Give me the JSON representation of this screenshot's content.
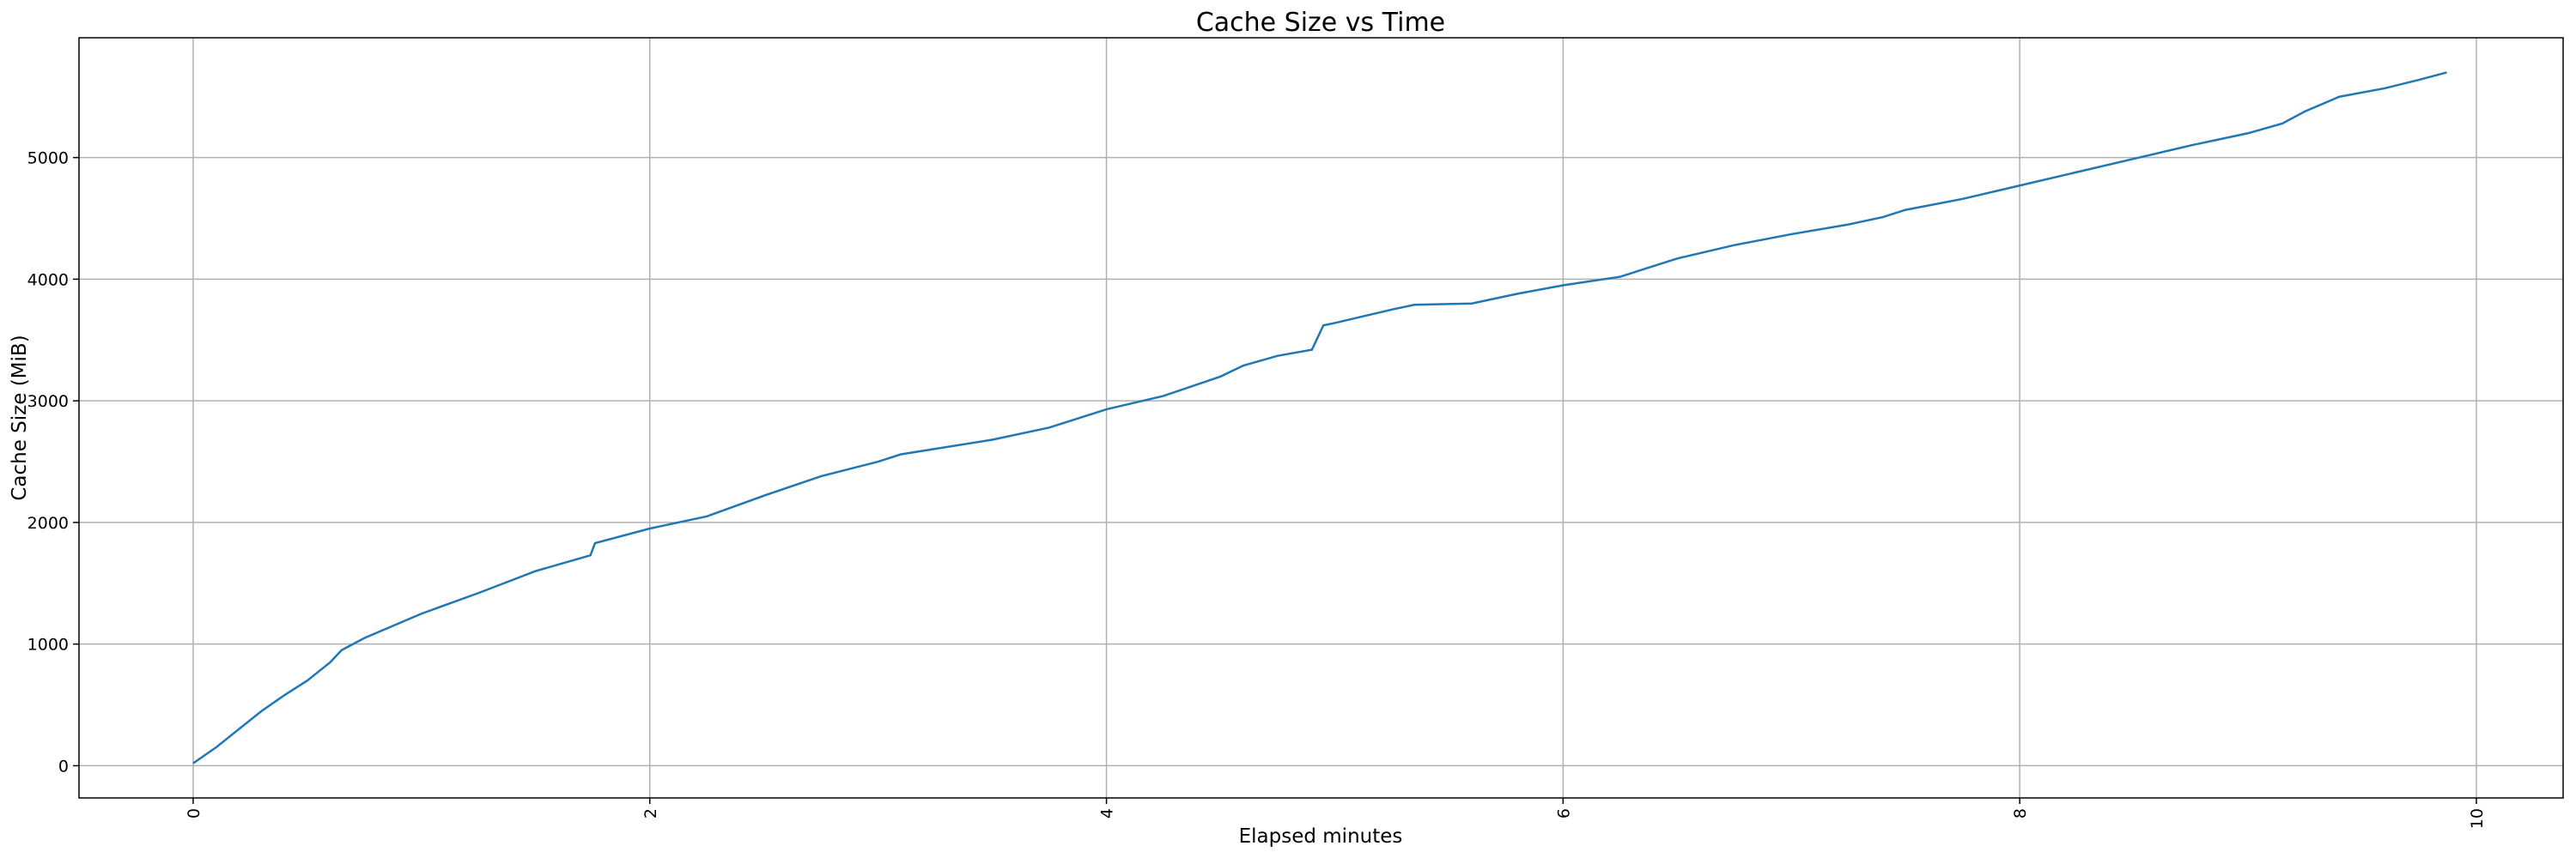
{
  "chart_data": {
    "type": "line",
    "title": "Cache Size vs Time",
    "x_label": "Elapsed minutes",
    "y_label": "Cache Size (MiB)",
    "x": [
      0,
      0.1,
      0.2,
      0.3,
      0.4,
      0.5,
      0.6,
      0.65,
      0.75,
      1.0,
      1.25,
      1.5,
      1.74,
      1.76,
      2.0,
      2.25,
      2.5,
      2.75,
      3.0,
      3.1,
      3.5,
      3.75,
      4.0,
      4.25,
      4.5,
      4.6,
      4.75,
      4.9,
      4.95,
      5.0,
      5.25,
      5.35,
      5.6,
      5.8,
      6.0,
      6.25,
      6.5,
      6.75,
      7.0,
      7.25,
      7.4,
      7.5,
      7.75,
      8.0,
      8.25,
      8.5,
      8.75,
      9.0,
      9.15,
      9.25,
      9.4,
      9.6,
      9.75,
      9.87
    ],
    "series": [
      {
        "name": "Cache Size",
        "color": "#1f77b4",
        "values": [
          20,
          150,
          300,
          450,
          580,
          700,
          850,
          950,
          1050,
          1250,
          1420,
          1600,
          1730,
          1830,
          1950,
          2050,
          2220,
          2380,
          2500,
          2560,
          2680,
          2780,
          2930,
          3040,
          3200,
          3290,
          3370,
          3420,
          3620,
          3640,
          3750,
          3790,
          3800,
          3880,
          3950,
          4020,
          4170,
          4280,
          4370,
          4450,
          4510,
          4570,
          4660,
          4770,
          4880,
          4990,
          5100,
          5200,
          5280,
          5380,
          5500,
          5570,
          5640,
          5700
        ]
      }
    ],
    "xlim": [
      -0.5,
      10.38
    ],
    "ylim": [
      -265,
      5985
    ],
    "xticks": [
      0,
      2,
      4,
      6,
      8,
      10
    ],
    "yticks": [
      0,
      1000,
      2000,
      3000,
      4000,
      5000
    ],
    "grid": true
  }
}
